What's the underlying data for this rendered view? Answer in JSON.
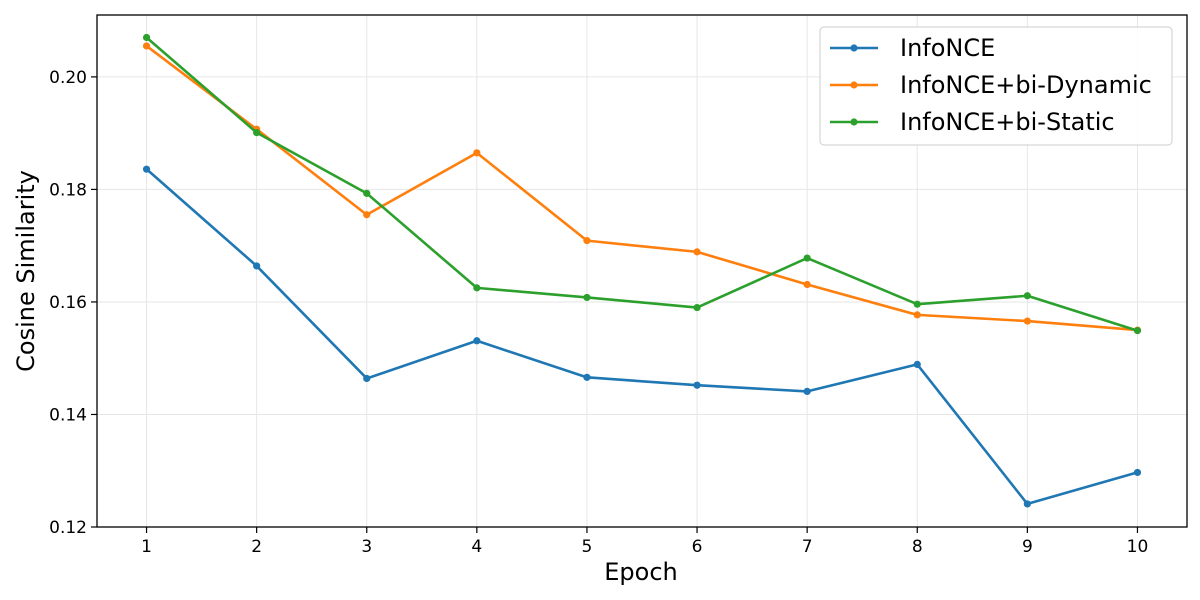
{
  "chart_data": {
    "type": "line",
    "title": "",
    "xlabel": "Epoch",
    "ylabel": "Cosine Similarity",
    "x": [
      1,
      2,
      3,
      4,
      5,
      6,
      7,
      8,
      9,
      10
    ],
    "xticks": [
      "1",
      "2",
      "3",
      "4",
      "5",
      "6",
      "7",
      "8",
      "9",
      "10"
    ],
    "yticks": [
      "0.12",
      "0.14",
      "0.16",
      "0.18",
      "0.20"
    ],
    "xlim": [
      0.55,
      10.45
    ],
    "ylim": [
      0.12,
      0.211
    ],
    "grid": true,
    "legend_position": "top-right",
    "series": [
      {
        "name": "InfoNCE",
        "color": "#1f77b4",
        "values": [
          0.1836,
          0.1664,
          0.1464,
          0.1531,
          0.1466,
          0.1452,
          0.1441,
          0.1489,
          0.1241,
          0.1297
        ]
      },
      {
        "name": "InfoNCE+bi-Dynamic",
        "color": "#ff7f0e",
        "values": [
          0.2055,
          0.1907,
          0.1755,
          0.1865,
          0.1709,
          0.1689,
          0.1631,
          0.1577,
          0.1566,
          0.155
        ]
      },
      {
        "name": "InfoNCE+bi-Static",
        "color": "#2ca02c",
        "values": [
          0.207,
          0.1901,
          0.1793,
          0.1625,
          0.1608,
          0.159,
          0.1678,
          0.1596,
          0.1611,
          0.1549
        ]
      }
    ]
  }
}
